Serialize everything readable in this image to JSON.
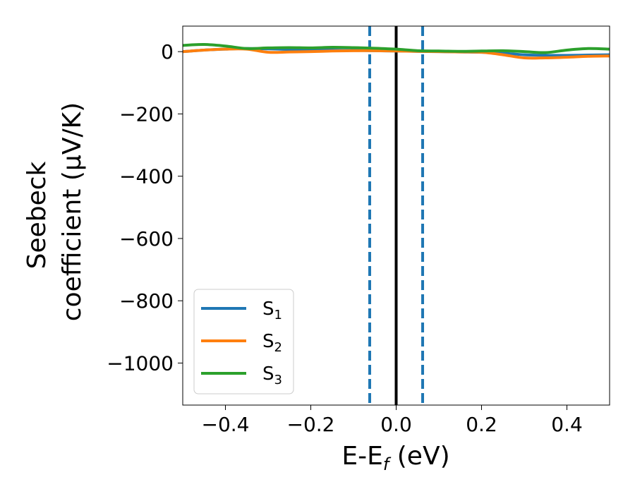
{
  "chart_data": {
    "type": "line",
    "xlabel_main": "E-E",
    "xlabel_sub": "f",
    "xlabel_unit": " (eV)",
    "ylabel_line1": "Seebeck",
    "ylabel_line2": "coefficient  (μV/K)",
    "xlim": [
      -0.5,
      0.5
    ],
    "ylim": [
      -1135,
      82
    ],
    "xticks": [
      -0.4,
      -0.2,
      0.0,
      0.2,
      0.4
    ],
    "xtick_labels": [
      "−0.4",
      "−0.2",
      "0.0",
      "0.2",
      "0.4"
    ],
    "yticks": [
      0,
      -200,
      -400,
      -600,
      -800,
      -1000
    ],
    "ytick_labels": [
      "0",
      "−200",
      "−400",
      "−600",
      "−800",
      "−1000"
    ],
    "vlines": [
      {
        "x": -0.062,
        "style": "dashed",
        "color": "#1f77b4"
      },
      {
        "x": 0.0,
        "style": "solid",
        "color": "#000000"
      },
      {
        "x": 0.062,
        "style": "dashed",
        "color": "#1f77b4"
      }
    ],
    "legend_position": "lower-left",
    "series": [
      {
        "name_main": "S",
        "name_sub": "1",
        "color": "#1f77b4",
        "x": [
          -0.5,
          -0.45,
          -0.4,
          -0.35,
          -0.3,
          -0.25,
          -0.2,
          -0.15,
          -0.1,
          -0.05,
          0.0,
          0.05,
          0.1,
          0.15,
          0.2,
          0.25,
          0.3,
          0.35,
          0.4,
          0.45,
          0.5
        ],
        "y": [
          0,
          5,
          8,
          10,
          9,
          7,
          6,
          5,
          4,
          3,
          2,
          1,
          0,
          -1,
          -2,
          -5,
          -10,
          -12,
          -12,
          -11,
          -10
        ]
      },
      {
        "name_main": "S",
        "name_sub": "2",
        "color": "#ff7f0e",
        "x": [
          -0.5,
          -0.45,
          -0.4,
          -0.35,
          -0.3,
          -0.25,
          -0.2,
          -0.15,
          -0.1,
          -0.05,
          0.0,
          0.05,
          0.1,
          0.15,
          0.2,
          0.25,
          0.3,
          0.35,
          0.4,
          0.45,
          0.5
        ],
        "y": [
          0,
          5,
          8,
          8,
          -2,
          -1,
          0,
          2,
          3,
          3,
          2,
          1,
          0,
          -1,
          -2,
          -10,
          -20,
          -20,
          -18,
          -15,
          -14
        ]
      },
      {
        "name_main": "S",
        "name_sub": "3",
        "color": "#2ca02c",
        "x": [
          -0.5,
          -0.45,
          -0.4,
          -0.35,
          -0.3,
          -0.25,
          -0.2,
          -0.15,
          -0.1,
          -0.05,
          0.0,
          0.05,
          0.1,
          0.15,
          0.2,
          0.25,
          0.3,
          0.35,
          0.4,
          0.45,
          0.5
        ],
        "y": [
          20,
          23,
          18,
          10,
          12,
          13,
          12,
          14,
          13,
          11,
          8,
          3,
          2,
          1,
          2,
          3,
          0,
          -3,
          5,
          10,
          8
        ]
      }
    ]
  }
}
